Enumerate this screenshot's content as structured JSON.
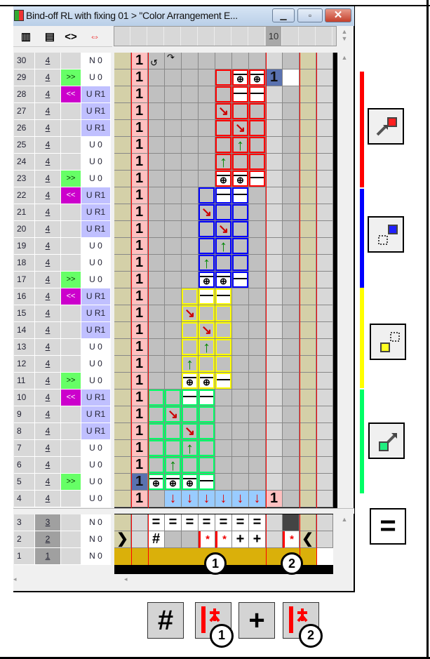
{
  "window": {
    "title": "Bind-off RL with fixing 01 > \"Color Arrangement E...",
    "minimize": "▁",
    "maximize": "▫",
    "close": "✕"
  },
  "toolbar": [
    {
      "icon": "row-height-icon",
      "glyph": "▥"
    },
    {
      "icon": "row-insert-icon",
      "glyph": "▤"
    },
    {
      "icon": "expand-icon",
      "glyph": "<>"
    },
    {
      "icon": "swap-direction-icon",
      "glyph": "⇔"
    }
  ],
  "ruler": {
    "marked_label": "10"
  },
  "colors": {
    "red": "#ff0000",
    "blue": "#0000ff",
    "yellow": "#ffff00",
    "green": "#00ff66"
  },
  "left_rows": [
    {
      "row": "30",
      "val": "4",
      "btn": "",
      "text": "N 0"
    },
    {
      "row": "29",
      "val": "4",
      "btn": ">>",
      "text": "U 0"
    },
    {
      "row": "28",
      "val": "4",
      "btn": "<<",
      "text": "U R1"
    },
    {
      "row": "27",
      "val": "4",
      "btn": "",
      "text": "U R1"
    },
    {
      "row": "26",
      "val": "4",
      "btn": "",
      "text": "U R1"
    },
    {
      "row": "25",
      "val": "4",
      "btn": "",
      "text": "U 0"
    },
    {
      "row": "24",
      "val": "4",
      "btn": "",
      "text": "U 0"
    },
    {
      "row": "23",
      "val": "4",
      "btn": ">>",
      "text": "U 0"
    },
    {
      "row": "22",
      "val": "4",
      "btn": "<<",
      "text": "U R1"
    },
    {
      "row": "21",
      "val": "4",
      "btn": "",
      "text": "U R1"
    },
    {
      "row": "20",
      "val": "4",
      "btn": "",
      "text": "U R1"
    },
    {
      "row": "19",
      "val": "4",
      "btn": "",
      "text": "U 0"
    },
    {
      "row": "18",
      "val": "4",
      "btn": "",
      "text": "U 0"
    },
    {
      "row": "17",
      "val": "4",
      "btn": ">>",
      "text": "U 0"
    },
    {
      "row": "16",
      "val": "4",
      "btn": "<<",
      "text": "U R1"
    },
    {
      "row": "15",
      "val": "4",
      "btn": "",
      "text": "U R1"
    },
    {
      "row": "14",
      "val": "4",
      "btn": "",
      "text": "U R1"
    },
    {
      "row": "13",
      "val": "4",
      "btn": "",
      "text": "U 0"
    },
    {
      "row": "12",
      "val": "4",
      "btn": "",
      "text": "U 0"
    },
    {
      "row": "11",
      "val": "4",
      "btn": ">>",
      "text": "U 0"
    },
    {
      "row": "10",
      "val": "4",
      "btn": "<<",
      "text": "U R1"
    },
    {
      "row": "9",
      "val": "4",
      "btn": "",
      "text": "U R1"
    },
    {
      "row": "8",
      "val": "4",
      "btn": "",
      "text": "U R1"
    },
    {
      "row": "7",
      "val": "4",
      "btn": "",
      "text": "U 0"
    },
    {
      "row": "6",
      "val": "4",
      "btn": "",
      "text": "U 0"
    },
    {
      "row": "5",
      "val": "4",
      "btn": ">>",
      "text": "U 0"
    },
    {
      "row": "4",
      "val": "4",
      "btn": "",
      "text": "U 0"
    }
  ],
  "bottom_left_rows": [
    {
      "row": "3",
      "val": "3",
      "btn": "",
      "text": "N 0"
    },
    {
      "row": "2",
      "val": "2",
      "btn": "",
      "text": "N 0"
    },
    {
      "row": "1",
      "val": "1",
      "btn": "",
      "text": "N 0"
    }
  ],
  "grid_rows": [
    {
      "group": "",
      "cells": [
        ".",
        "1",
        "r1",
        "r2",
        ".",
        ".",
        ".",
        ".",
        ".",
        ".",
        ".",
        ".",
        "."
      ]
    },
    {
      "group": "red",
      "cells": [
        ".",
        "1",
        ".",
        ".",
        ".",
        ".",
        "o",
        "k",
        "k",
        "1b",
        "w",
        ".",
        "."
      ]
    },
    {
      "group": "red",
      "cells": [
        ".",
        "1",
        ".",
        ".",
        ".",
        ".",
        "o",
        "l",
        "l",
        ".",
        ".",
        ".",
        "."
      ]
    },
    {
      "group": "red",
      "cells": [
        ".",
        "1",
        ".",
        ".",
        ".",
        ".",
        "d",
        "o",
        "o",
        ".",
        ".",
        ".",
        "."
      ]
    },
    {
      "group": "red",
      "cells": [
        ".",
        "1",
        ".",
        ".",
        ".",
        ".",
        "o",
        "d",
        "o",
        ".",
        ".",
        ".",
        "."
      ]
    },
    {
      "group": "red",
      "cells": [
        ".",
        "1",
        ".",
        ".",
        ".",
        ".",
        "o",
        "u",
        "o",
        ".",
        ".",
        ".",
        "."
      ]
    },
    {
      "group": "red",
      "cells": [
        ".",
        "1",
        ".",
        ".",
        ".",
        ".",
        "u",
        "o",
        "o",
        ".",
        ".",
        ".",
        "."
      ]
    },
    {
      "group": "red",
      "cells": [
        ".",
        "1",
        ".",
        ".",
        ".",
        ".",
        "k",
        "k",
        "l",
        ".",
        ".",
        ".",
        "."
      ]
    },
    {
      "group": "blue",
      "cells": [
        ".",
        "1",
        ".",
        ".",
        ".",
        "o",
        "l",
        "l",
        ".",
        ".",
        ".",
        ".",
        "."
      ]
    },
    {
      "group": "blue",
      "cells": [
        ".",
        "1",
        ".",
        ".",
        ".",
        "d",
        "o",
        "o",
        ".",
        ".",
        ".",
        ".",
        "."
      ]
    },
    {
      "group": "blue",
      "cells": [
        ".",
        "1",
        ".",
        ".",
        ".",
        "o",
        "d",
        "o",
        ".",
        ".",
        ".",
        ".",
        "."
      ]
    },
    {
      "group": "blue",
      "cells": [
        ".",
        "1",
        ".",
        ".",
        ".",
        "o",
        "u",
        "o",
        ".",
        ".",
        ".",
        ".",
        "."
      ]
    },
    {
      "group": "blue",
      "cells": [
        ".",
        "1",
        ".",
        ".",
        ".",
        "u",
        "o",
        "o",
        ".",
        ".",
        ".",
        ".",
        "."
      ]
    },
    {
      "group": "blue",
      "cells": [
        ".",
        "1",
        ".",
        ".",
        ".",
        "k",
        "k",
        "l",
        ".",
        ".",
        ".",
        ".",
        "."
      ]
    },
    {
      "group": "yellow",
      "cells": [
        ".",
        "1",
        ".",
        ".",
        "o",
        "l",
        "l",
        ".",
        ".",
        ".",
        ".",
        ".",
        "."
      ]
    },
    {
      "group": "yellow",
      "cells": [
        ".",
        "1",
        ".",
        ".",
        "d",
        "o",
        "o",
        ".",
        ".",
        ".",
        ".",
        ".",
        "."
      ]
    },
    {
      "group": "yellow",
      "cells": [
        ".",
        "1",
        ".",
        ".",
        "o",
        "d",
        "o",
        ".",
        ".",
        ".",
        ".",
        ".",
        "."
      ]
    },
    {
      "group": "yellow",
      "cells": [
        ".",
        "1",
        ".",
        ".",
        "o",
        "u",
        "o",
        ".",
        ".",
        ".",
        ".",
        ".",
        "."
      ]
    },
    {
      "group": "yellow",
      "cells": [
        ".",
        "1",
        ".",
        ".",
        "u",
        "o",
        "o",
        ".",
        ".",
        ".",
        ".",
        ".",
        "."
      ]
    },
    {
      "group": "yellow",
      "cells": [
        ".",
        "1",
        ".",
        ".",
        "k",
        "k",
        "l",
        ".",
        ".",
        ".",
        ".",
        ".",
        "."
      ]
    },
    {
      "group": "green",
      "cells": [
        ".",
        "1",
        "o",
        "o",
        "l",
        "l",
        ".",
        ".",
        ".",
        ".",
        ".",
        ".",
        "."
      ]
    },
    {
      "group": "green",
      "cells": [
        ".",
        "1",
        "o",
        "d",
        "o",
        "o",
        ".",
        ".",
        ".",
        ".",
        ".",
        ".",
        "."
      ]
    },
    {
      "group": "green",
      "cells": [
        ".",
        "1",
        "o",
        "o",
        "d",
        "o",
        ".",
        ".",
        ".",
        ".",
        ".",
        ".",
        "."
      ]
    },
    {
      "group": "green",
      "cells": [
        ".",
        "1",
        "o",
        "o",
        "u",
        "o",
        ".",
        ".",
        ".",
        ".",
        ".",
        ".",
        "."
      ]
    },
    {
      "group": "green",
      "cells": [
        ".",
        "1",
        "o",
        "u",
        "o",
        "o",
        ".",
        ".",
        ".",
        ".",
        ".",
        ".",
        "."
      ]
    },
    {
      "group": "green",
      "cells": [
        ".",
        "1b",
        "k",
        "k",
        "k",
        "l",
        ".",
        ".",
        ".",
        ".",
        ".",
        ".",
        "."
      ]
    },
    {
      "group": "",
      "cells": [
        ".",
        "1",
        ".",
        "v",
        "v",
        "v",
        "v",
        "v",
        "v",
        "1",
        ".",
        ".",
        "."
      ]
    }
  ],
  "bottom_rows": [
    {
      "cells": [
        "t",
        "lt",
        "=",
        "=",
        "=",
        "=",
        "=",
        "=",
        "=",
        "lt",
        "dk",
        "t",
        "lt"
      ]
    },
    {
      "cells": [
        ">",
        "lt",
        "#",
        "g",
        "g",
        "s",
        "s",
        "+",
        "+",
        "lt",
        "s",
        "<",
        "lt"
      ]
    },
    {
      "cells": [
        "gold",
        "gold",
        "gold",
        "gold",
        "gold",
        "gold",
        "gold",
        "gold",
        "gold",
        "gold",
        "gold",
        "gold",
        "w"
      ]
    }
  ],
  "markers": [
    "1",
    "2"
  ],
  "symbols": {
    "one": "1",
    "knot": "⊕",
    "diag": "↘",
    "up": "↑",
    "down": "↓",
    "r1": "↺",
    "r2": "↷",
    "eq": "=",
    "hash": "#",
    "plus": "+",
    "star": "*",
    "next": "❯",
    "prev": "❮"
  },
  "side_buttons": [
    {
      "name": "red-group-tool",
      "color": "#ff2020"
    },
    {
      "name": "blue-group-tool",
      "color": "#2020ff"
    },
    {
      "name": "yellow-group-tool",
      "color": "#ffff20"
    },
    {
      "name": "green-group-tool",
      "color": "#20ee80"
    }
  ],
  "equals_button": "=",
  "bottom_buttons": [
    {
      "name": "hash-stitch",
      "glyph": "#"
    },
    {
      "name": "marker-1-stitch",
      "badge": "1"
    },
    {
      "name": "plus-stitch",
      "glyph": "+"
    },
    {
      "name": "marker-2-stitch",
      "badge": "2"
    }
  ]
}
